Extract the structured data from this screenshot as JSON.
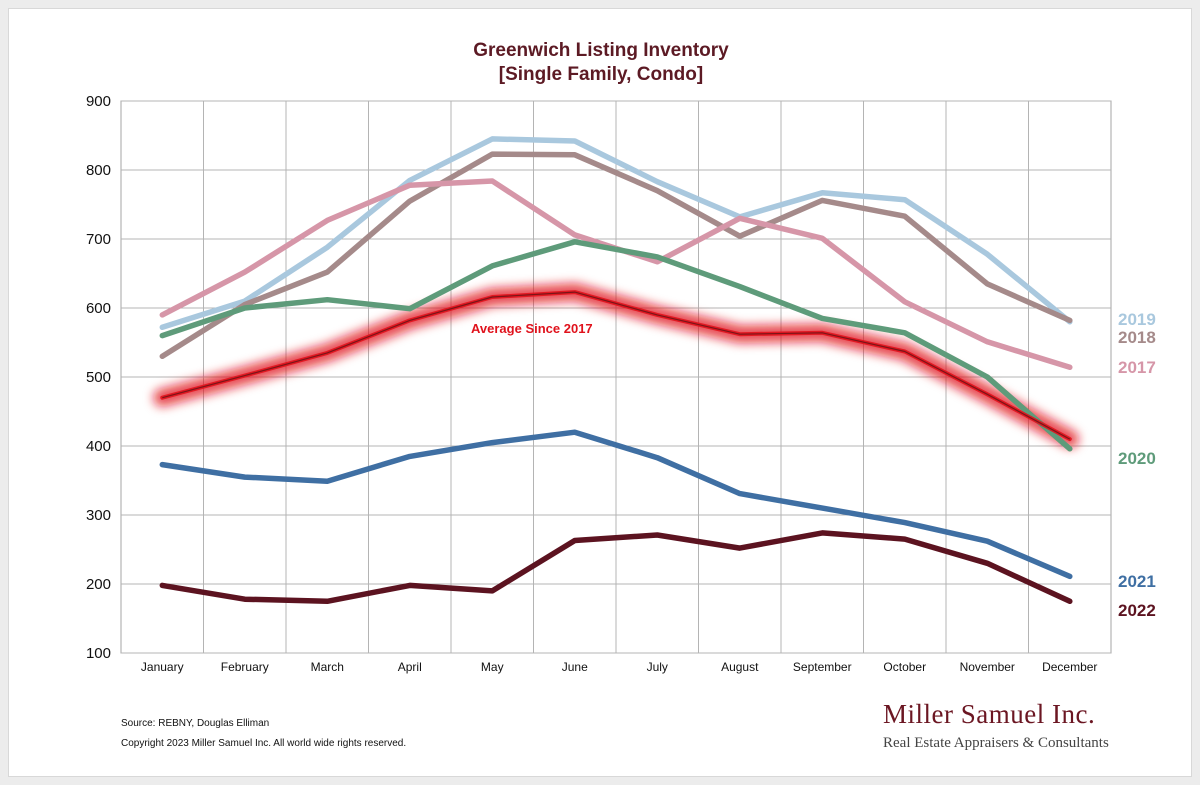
{
  "chart_data": {
    "type": "line",
    "title": "Greenwich Listing Inventory",
    "subtitle": "[Single Family, Condo]",
    "xlabel": "",
    "ylabel": "",
    "ylim": [
      100,
      900
    ],
    "yticks": [
      100,
      200,
      300,
      400,
      500,
      600,
      700,
      800,
      900
    ],
    "grid": true,
    "categories": [
      "January",
      "February",
      "March",
      "April",
      "May",
      "June",
      "July",
      "August",
      "September",
      "October",
      "November",
      "December"
    ],
    "series": [
      {
        "name": "2019",
        "color": "#a9c8de",
        "values": [
          572,
          610,
          688,
          785,
          845,
          842,
          783,
          732,
          767,
          757,
          678,
          580
        ]
      },
      {
        "name": "2018",
        "color": "#a58a8a",
        "values": [
          530,
          605,
          652,
          755,
          823,
          822,
          770,
          704,
          756,
          733,
          635,
          582
        ]
      },
      {
        "name": "2017",
        "color": "#d696a8",
        "values": [
          590,
          652,
          727,
          778,
          784,
          706,
          667,
          730,
          701,
          609,
          551,
          514
        ]
      },
      {
        "name": "2020",
        "color": "#5e9b7a",
        "values": [
          560,
          600,
          612,
          599,
          661,
          696,
          674,
          631,
          585,
          564,
          500,
          396
        ]
      },
      {
        "name": "2021",
        "color": "#3f6fa3",
        "values": [
          373,
          355,
          349,
          385,
          405,
          420,
          383,
          331,
          310,
          289,
          262,
          211
        ]
      },
      {
        "name": "2022",
        "color": "#5c1320",
        "values": [
          198,
          178,
          175,
          198,
          190,
          263,
          271,
          252,
          274,
          265,
          230,
          175
        ]
      }
    ],
    "average": {
      "name": "Average  Since 2017",
      "color": "#e0121c",
      "values": [
        470,
        502,
        535,
        582,
        616,
        623,
        590,
        562,
        564,
        537,
        475,
        410
      ]
    }
  },
  "footer": {
    "source": "Source: REBNY, Douglas Elliman",
    "copyright": "Copyright 2023 Miller Samuel Inc.  All world wide rights reserved."
  },
  "brand": {
    "name": "Miller Samuel Inc.",
    "tagline": "Real Estate Appraisers & Consultants"
  }
}
